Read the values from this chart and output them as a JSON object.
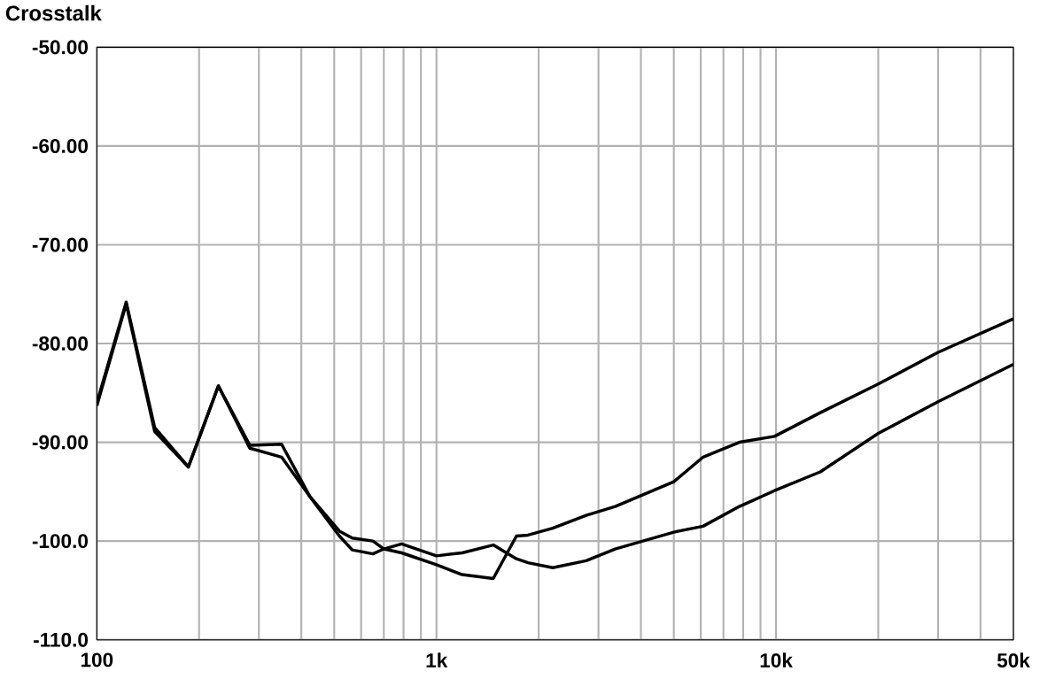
{
  "chart_data": {
    "type": "line",
    "title": "Crosstalk",
    "x": [
      100,
      122,
      148,
      186,
      228,
      282,
      350,
      424,
      518,
      565,
      650,
      700,
      790,
      1000,
      1190,
      1470,
      1720,
      1860,
      2200,
      2760,
      3360,
      5000,
      6100,
      7800,
      9900,
      13500,
      20000,
      30000,
      50000
    ],
    "series": [
      {
        "color": "#000000",
        "values": [
          -86.0,
          -75.8,
          -88.5,
          -92.5,
          -84.3,
          -90.3,
          -90.2,
          -95.5,
          -99.0,
          -99.7,
          -100.0,
          -100.8,
          -101.2,
          -102.4,
          -103.4,
          -103.8,
          -99.5,
          -99.4,
          -98.7,
          -97.4,
          -96.5,
          -94.0,
          -91.5,
          -90.0,
          -89.4,
          -87.0,
          -84.1,
          -80.9,
          -77.5
        ]
      },
      {
        "color": "#000000",
        "values": [
          -86.3,
          -76.0,
          -88.9,
          -92.5,
          -84.3,
          -90.6,
          -91.5,
          -95.5,
          -99.5,
          -100.9,
          -101.3,
          -100.8,
          -100.3,
          -101.5,
          -101.2,
          -100.4,
          -101.8,
          -102.2,
          -102.7,
          -102.0,
          -100.8,
          -99.1,
          -98.5,
          -96.5,
          -94.9,
          -93.0,
          -89.1,
          -85.9,
          -82.1
        ]
      }
    ],
    "log": "x",
    "xlim": [
      100,
      50000
    ],
    "xticks": [
      100,
      {
        "value": 1000,
        "label": "1k"
      },
      {
        "value": 10000,
        "label": "10k"
      },
      {
        "value": 50000,
        "label": "50k"
      }
    ],
    "ylim": [
      -110,
      -50
    ],
    "yticks": [
      {
        "value": -110,
        "label": "-110.0"
      },
      {
        "value": -100,
        "label": "-100.0"
      },
      {
        "value": -90,
        "label": "-90.00"
      },
      {
        "value": -80,
        "label": "-80.00"
      },
      {
        "value": -70,
        "label": "-70.00"
      },
      {
        "value": -60,
        "label": "-60.00"
      },
      {
        "value": -50,
        "label": "-50.00"
      }
    ],
    "grid": true,
    "marker": "none",
    "line_style": "solid"
  }
}
